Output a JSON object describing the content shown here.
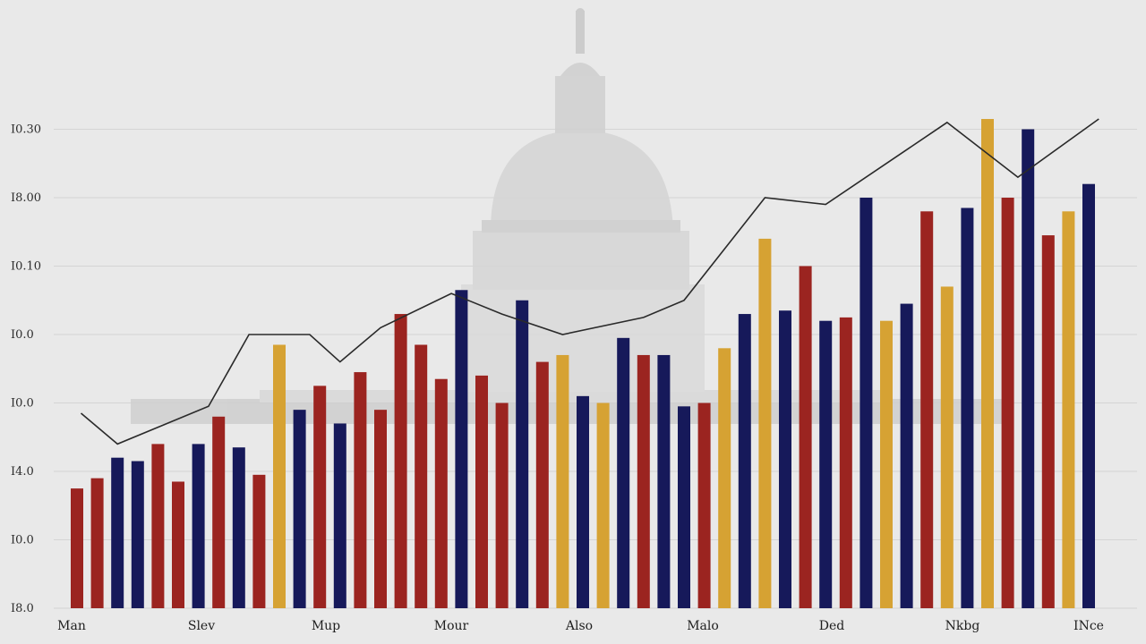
{
  "chart_data": {
    "type": "bar",
    "title": "",
    "xlabel": "",
    "ylabel": "",
    "grid": true,
    "legend": "none",
    "colors": {
      "red": "#9b2420",
      "navy": "#16195a",
      "gold": "#d6a233",
      "line": "#2a2a2a",
      "grid": "#d4d4d4",
      "background": "#e9e9e9",
      "building": "#d2d2d2"
    },
    "background_image": "capitol-dome-silhouette",
    "y_tick_labels": [
      "I8.0",
      "I0.0",
      "I4.0",
      "I0.0",
      "I0.0",
      "I0.10",
      "I8.00",
      "I0.30"
    ],
    "x_tick_labels": [
      "Man",
      "Slev",
      "Mup",
      "Mour",
      "Also",
      "Malo",
      "Ded",
      "Nkbg",
      "INce"
    ],
    "ylim": [
      0,
      8
    ],
    "bars": [
      {
        "value": 1.75,
        "color": "red"
      },
      {
        "value": 1.9,
        "color": "red"
      },
      {
        "value": 2.2,
        "color": "navy"
      },
      {
        "value": 2.15,
        "color": "navy"
      },
      {
        "value": 2.4,
        "color": "red"
      },
      {
        "value": 1.85,
        "color": "red"
      },
      {
        "value": 2.4,
        "color": "navy"
      },
      {
        "value": 2.8,
        "color": "red"
      },
      {
        "value": 2.35,
        "color": "navy"
      },
      {
        "value": 1.95,
        "color": "red"
      },
      {
        "value": 3.85,
        "color": "gold"
      },
      {
        "value": 2.9,
        "color": "navy"
      },
      {
        "value": 3.25,
        "color": "red"
      },
      {
        "value": 2.7,
        "color": "navy"
      },
      {
        "value": 3.45,
        "color": "red"
      },
      {
        "value": 2.9,
        "color": "red"
      },
      {
        "value": 4.3,
        "color": "red"
      },
      {
        "value": 3.85,
        "color": "red"
      },
      {
        "value": 3.35,
        "color": "red"
      },
      {
        "value": 4.65,
        "color": "navy"
      },
      {
        "value": 3.4,
        "color": "red"
      },
      {
        "value": 3.0,
        "color": "red"
      },
      {
        "value": 4.5,
        "color": "navy"
      },
      {
        "value": 3.6,
        "color": "red"
      },
      {
        "value": 3.7,
        "color": "gold"
      },
      {
        "value": 3.1,
        "color": "navy"
      },
      {
        "value": 3.0,
        "color": "gold"
      },
      {
        "value": 3.95,
        "color": "navy"
      },
      {
        "value": 3.7,
        "color": "red"
      },
      {
        "value": 3.7,
        "color": "navy"
      },
      {
        "value": 2.95,
        "color": "navy"
      },
      {
        "value": 3.0,
        "color": "red"
      },
      {
        "value": 3.8,
        "color": "gold"
      },
      {
        "value": 4.3,
        "color": "navy"
      },
      {
        "value": 5.4,
        "color": "gold"
      },
      {
        "value": 4.35,
        "color": "navy"
      },
      {
        "value": 5.0,
        "color": "red"
      },
      {
        "value": 4.2,
        "color": "navy"
      },
      {
        "value": 4.25,
        "color": "red"
      },
      {
        "value": 6.0,
        "color": "navy"
      },
      {
        "value": 4.2,
        "color": "gold"
      },
      {
        "value": 4.45,
        "color": "navy"
      },
      {
        "value": 5.8,
        "color": "red"
      },
      {
        "value": 4.7,
        "color": "gold"
      },
      {
        "value": 5.85,
        "color": "navy"
      },
      {
        "value": 7.15,
        "color": "gold"
      },
      {
        "value": 6.0,
        "color": "red"
      },
      {
        "value": 7.0,
        "color": "navy"
      },
      {
        "value": 5.45,
        "color": "red"
      },
      {
        "value": 5.8,
        "color": "gold"
      },
      {
        "value": 6.2,
        "color": "navy"
      }
    ],
    "trend_line": [
      {
        "x": 0.2,
        "y": 2.85
      },
      {
        "x": 2.0,
        "y": 2.4
      },
      {
        "x": 6.5,
        "y": 2.95
      },
      {
        "x": 8.5,
        "y": 4.0
      },
      {
        "x": 11.5,
        "y": 4.0
      },
      {
        "x": 13.0,
        "y": 3.6
      },
      {
        "x": 15.0,
        "y": 4.1
      },
      {
        "x": 18.5,
        "y": 4.6
      },
      {
        "x": 21.0,
        "y": 4.3
      },
      {
        "x": 24.0,
        "y": 4.0
      },
      {
        "x": 28.0,
        "y": 4.25
      },
      {
        "x": 30.0,
        "y": 4.5
      },
      {
        "x": 34.0,
        "y": 6.0
      },
      {
        "x": 37.0,
        "y": 5.9
      },
      {
        "x": 43.0,
        "y": 7.1
      },
      {
        "x": 46.5,
        "y": 6.3
      },
      {
        "x": 50.5,
        "y": 7.15
      }
    ]
  }
}
